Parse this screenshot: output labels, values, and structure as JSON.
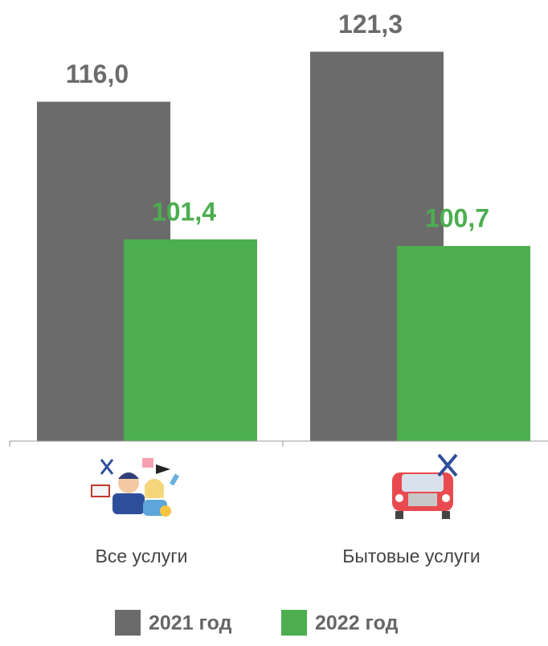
{
  "chart_data": {
    "type": "bar",
    "categories": [
      "Все услуги",
      "Бытовые услуги"
    ],
    "series": [
      {
        "name": "2021 год",
        "color": "#6b6b6b",
        "values": [
          116.0,
          121.3
        ],
        "value_labels": [
          "116,0",
          "121,3"
        ]
      },
      {
        "name": "2022 год",
        "color": "#4cae4f",
        "values": [
          101.4,
          100.7
        ],
        "value_labels": [
          "101,4",
          "100,7"
        ]
      }
    ],
    "ylim": [
      80,
      125
    ]
  }
}
